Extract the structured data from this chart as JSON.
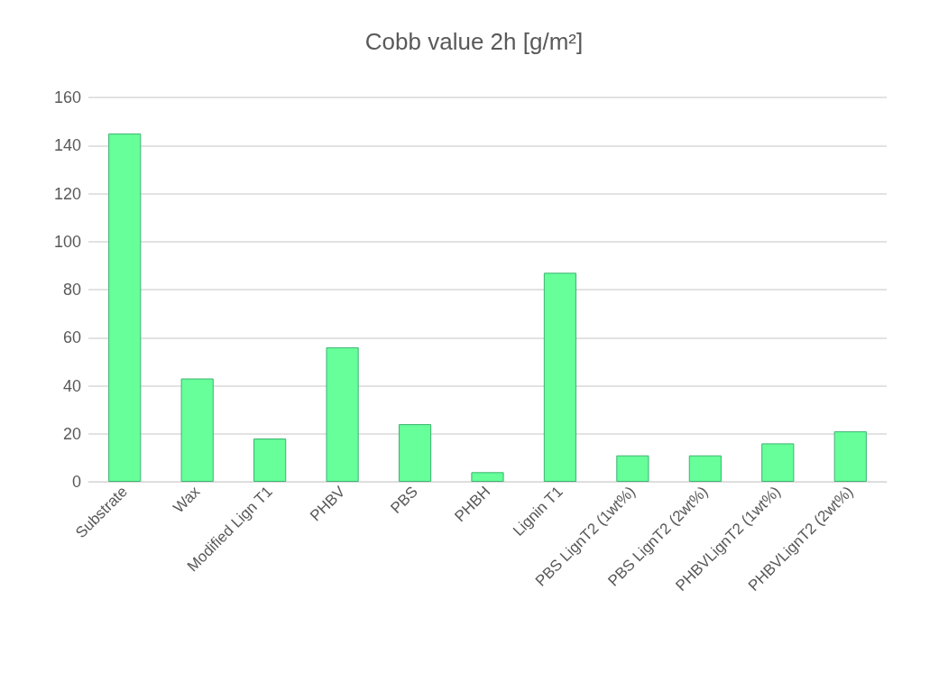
{
  "chart_data": {
    "type": "bar",
    "title": "Cobb value 2h [g/m²]",
    "categories": [
      "Substrate",
      "Wax",
      "Modified Lign T1",
      "PHBV",
      "PBS",
      "PHBH",
      "Lignin T1",
      "PBS LignT2 (1wt%)",
      "PBS LignT2 (2wt%)",
      "PHBVLignT2 (1wt%)",
      "PHBVLignT2 (2wt%)"
    ],
    "values": [
      145,
      43,
      18,
      56,
      24,
      4,
      87,
      11,
      11,
      16,
      21
    ],
    "color": "#66ff99",
    "ylim": [
      0,
      160
    ],
    "yticks": [
      0,
      20,
      40,
      60,
      80,
      100,
      120,
      140,
      160
    ],
    "grid": "y"
  }
}
